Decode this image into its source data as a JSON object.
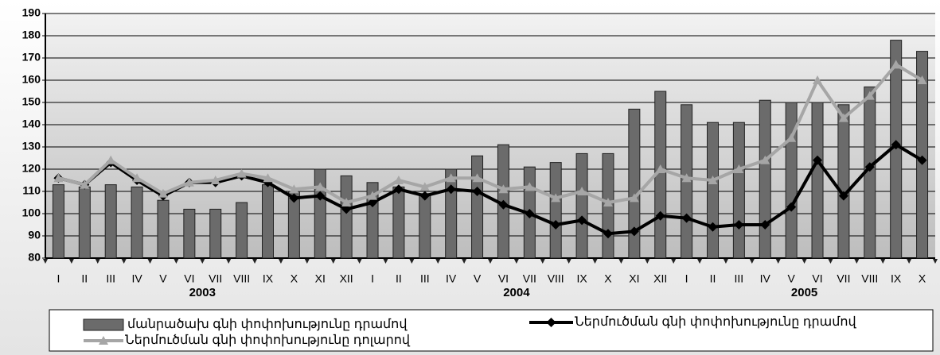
{
  "chart_data": {
    "type": "bar-line",
    "categories": [
      "I",
      "II",
      "III",
      "IV",
      "V",
      "VI",
      "VII",
      "VIII",
      "IX",
      "X",
      "XI",
      "XII",
      "I",
      "II",
      "III",
      "IV",
      "V",
      "VI",
      "VII",
      "VIII",
      "IX",
      "X",
      "XI",
      "XII",
      "I",
      "II",
      "III",
      "IV",
      "V",
      "VI",
      "VII",
      "VIII",
      "IX",
      "X"
    ],
    "x_groups": [
      "2003",
      "2004",
      "2005"
    ],
    "series": [
      {
        "name": "մանրածախ գնի փոփոխությունը դրամով",
        "type": "bar",
        "color": "#6b6b6b",
        "values": [
          113,
          112,
          113,
          112,
          106,
          102,
          102,
          105,
          113,
          110,
          120,
          117,
          114,
          112,
          109,
          120,
          126,
          131,
          121,
          123,
          127,
          127,
          147,
          155,
          149,
          141,
          141,
          151,
          150,
          150,
          149,
          157,
          178,
          173
        ]
      },
      {
        "name": "Ներմուծման գնի փոփոխությունը դրամով",
        "type": "line",
        "marker": "diamond",
        "color": "#000000",
        "values": [
          116,
          113,
          123,
          115,
          108,
          114,
          114,
          117,
          114,
          107,
          108,
          102,
          105,
          111,
          108,
          111,
          110,
          104,
          100,
          95,
          97,
          91,
          92,
          99,
          98,
          94,
          95,
          95,
          103,
          124,
          108,
          121,
          131,
          124
        ]
      },
      {
        "name": "Ներմուծման գնի փոփոխությունը դոլարով",
        "type": "line",
        "marker": "triangle",
        "color": "#a6a6a6",
        "values": [
          116,
          113,
          124,
          116,
          109,
          114,
          115,
          118,
          116,
          111,
          112,
          105,
          108,
          115,
          112,
          116,
          116,
          111,
          112,
          107,
          110,
          105,
          107,
          120,
          116,
          115,
          120,
          124,
          134,
          160,
          143,
          153,
          167,
          160
        ]
      }
    ],
    "ylim": [
      80,
      190
    ],
    "yticks": [
      80,
      90,
      100,
      110,
      120,
      130,
      140,
      150,
      160,
      170,
      180,
      190
    ],
    "grid": true,
    "legend": "bottom"
  }
}
